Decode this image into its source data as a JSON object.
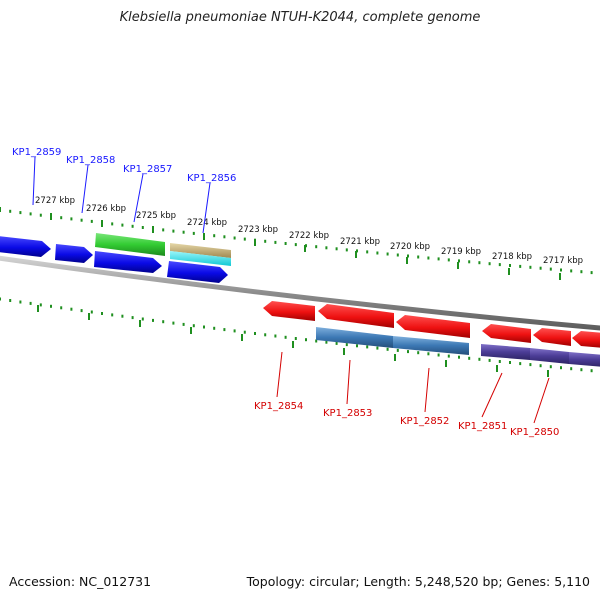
{
  "title": "Klebsiella pneumoniae NTUH-K2044, complete genome",
  "footer": {
    "accession": "Accession: NC_012731",
    "summary": "Topology: circular; Length: 5,248,520 bp; Genes: 5,110"
  },
  "colors": {
    "tick_green": "#1f8f1f",
    "forward_gene_blue": "#0a0ae6",
    "reverse_gene_red": "#ee1111",
    "green_gene": "#33cc33",
    "tan_gene": "#c8b47a",
    "cyan_gene": "#22e6f0",
    "steelblue_gene": "#3c78b4",
    "purple_gene": "#4b3c96",
    "backbone_gray": "#8c8c8c",
    "label_blue": "#1a1aff",
    "label_red": "#d40000"
  },
  "scale_labels": [
    "2727 kbp",
    "2726 kbp",
    "2725 kbp",
    "2724 kbp",
    "2723 kbp",
    "2722 kbp",
    "2721 kbp",
    "2720 kbp",
    "2719 kbp",
    "2718 kbp",
    "2717 kbp"
  ],
  "forward_labels": [
    "KP1_2859",
    "KP1_2858",
    "KP1_2857",
    "KP1_2856"
  ],
  "reverse_labels": [
    "KP1_2854",
    "KP1_2853",
    "KP1_2852",
    "KP1_2851",
    "KP1_2850"
  ]
}
